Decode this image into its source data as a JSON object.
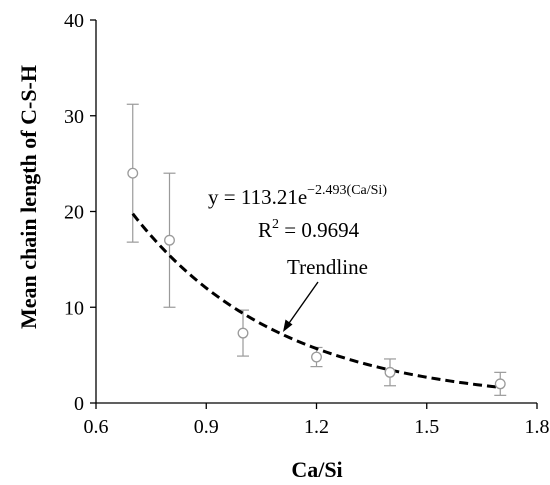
{
  "chart_data": {
    "type": "scatter",
    "title": "",
    "xlabel": "Ca/Si",
    "ylabel": "Mean chain length of C-S-H",
    "xlim": [
      0.6,
      1.8
    ],
    "ylim": [
      0,
      40
    ],
    "x_ticks": [
      "0.6",
      "0.9",
      "1.2",
      "1.5",
      "1.8"
    ],
    "y_ticks": [
      "0",
      "10",
      "20",
      "30",
      "40"
    ],
    "grid": false,
    "legend": "none",
    "series": [
      {
        "points": [
          {
            "x": 0.7,
            "y": 24.0,
            "err_low": 16.8,
            "err_high": 31.2
          },
          {
            "x": 0.8,
            "y": 17.0,
            "err_low": 10.0,
            "err_high": 24.0
          },
          {
            "x": 1.0,
            "y": 7.3,
            "err_low": 4.9,
            "err_high": 9.7
          },
          {
            "x": 1.2,
            "y": 4.8,
            "err_low": 3.8,
            "err_high": 5.8
          },
          {
            "x": 1.4,
            "y": 3.2,
            "err_low": 1.8,
            "err_high": 4.6
          },
          {
            "x": 1.7,
            "y": 2.0,
            "err_low": 0.8,
            "err_high": 3.2
          }
        ]
      }
    ],
    "trendline": {
      "a": 113.21,
      "b": -2.493,
      "x_range": [
        0.7,
        1.7
      ],
      "style": "dashed"
    },
    "annotations": {
      "equation_prefix": "y = 113.21e",
      "equation_exponent": "−2.493(Ca/Si)",
      "r2_prefix": "R",
      "r2_sup": "2",
      "r2_suffix": " = 0.9694",
      "trend_label": "Trendline"
    },
    "colors": {
      "marker": "#9a9a9a",
      "errorbar": "#9a9a9a",
      "trendline": "#000000",
      "axis": "#000000"
    }
  }
}
